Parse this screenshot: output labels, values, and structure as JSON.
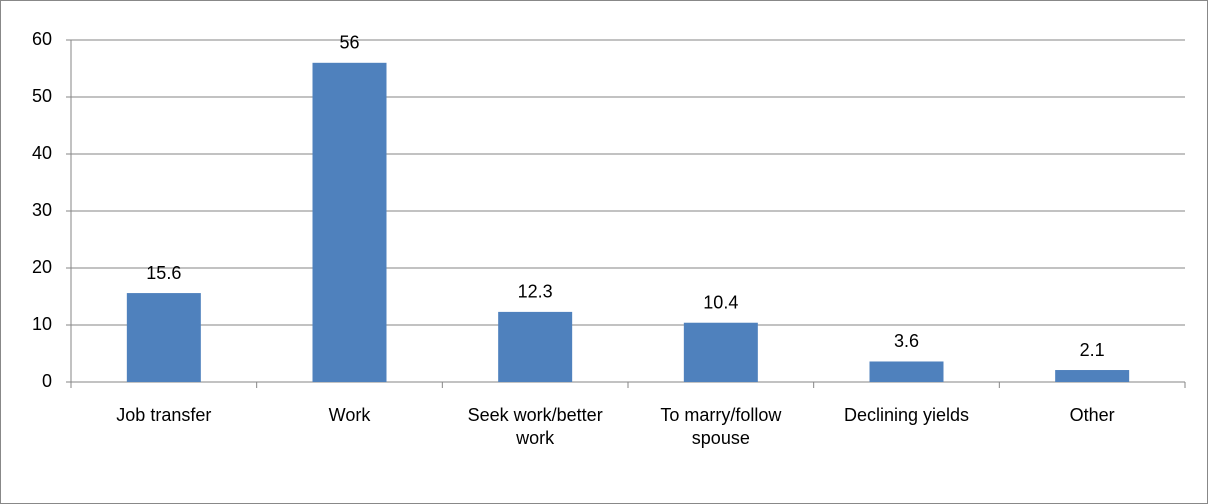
{
  "chart_data": {
    "type": "bar",
    "categories": [
      "Job transfer",
      "Work",
      "Seek work/better work",
      "To marry/follow spouse",
      "Declining yields",
      "Other"
    ],
    "values": [
      15.6,
      56,
      12.3,
      10.4,
      3.6,
      2.1
    ],
    "color": "#4f81bd",
    "ylim": [
      0,
      60
    ],
    "yticks": [
      0,
      10,
      20,
      30,
      40,
      50,
      60
    ],
    "grid": true
  }
}
